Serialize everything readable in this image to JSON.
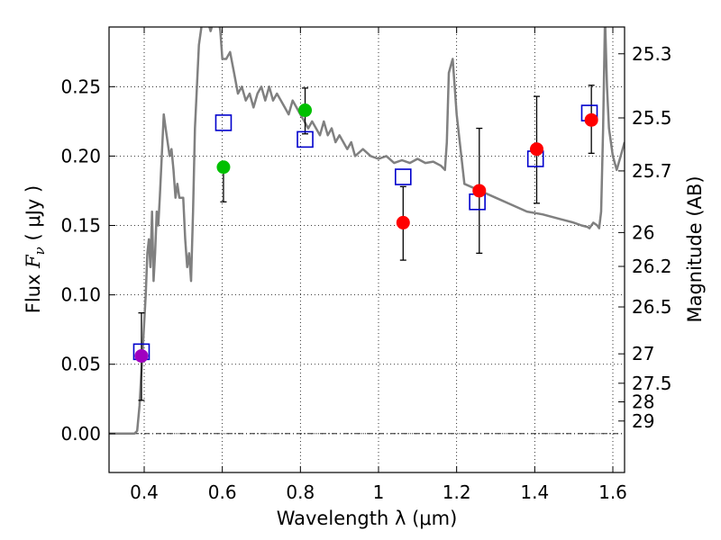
{
  "chart_data": {
    "type": "scatter",
    "xlabel": "Wavelength  λ (μm)",
    "ylabel": "Flux  Fν  ( μJy )",
    "ylabel_parts": {
      "pre": "Flux  ",
      "sym": "F",
      "sub": "ν",
      "post": "  ( μJy )"
    },
    "right_ylabel": "Magnitude (AB)",
    "xlim": [
      0.31,
      1.63
    ],
    "ylim": [
      -0.028,
      0.293
    ],
    "grid": true,
    "x_ticks": [
      {
        "value": 0.4,
        "label": "0.4"
      },
      {
        "value": 0.6,
        "label": "0.6"
      },
      {
        "value": 0.8,
        "label": "0.8"
      },
      {
        "value": 1.0,
        "label": "1"
      },
      {
        "value": 1.2,
        "label": "1.2"
      },
      {
        "value": 1.4,
        "label": "1.4"
      },
      {
        "value": 1.6,
        "label": "1.6"
      }
    ],
    "y_ticks": [
      {
        "value": 0.0,
        "label": "0.00"
      },
      {
        "value": 0.05,
        "label": "0.05"
      },
      {
        "value": 0.1,
        "label": "0.10"
      },
      {
        "value": 0.15,
        "label": "0.15"
      },
      {
        "value": 0.2,
        "label": "0.20"
      },
      {
        "value": 0.25,
        "label": "0.25"
      }
    ],
    "mag_ticks": [
      {
        "value": 0.2737,
        "label": "25.3"
      },
      {
        "value": 0.2275,
        "label": "25.5"
      },
      {
        "value": 0.1893,
        "label": "25.7"
      },
      {
        "value": 0.1449,
        "label": "26"
      },
      {
        "value": 0.1205,
        "label": "26.2"
      },
      {
        "value": 0.0913,
        "label": "26.5"
      },
      {
        "value": 0.0575,
        "label": "27"
      },
      {
        "value": 0.0363,
        "label": "27.5"
      },
      {
        "value": 0.0229,
        "label": "28"
      },
      {
        "value": 0.0091,
        "label": "29"
      }
    ],
    "series": [
      {
        "name": "model_sed",
        "style": "line",
        "color": "#808080",
        "x": [
          0.31,
          0.375,
          0.382,
          0.388,
          0.392,
          0.396,
          0.4,
          0.404,
          0.408,
          0.412,
          0.416,
          0.42,
          0.424,
          0.428,
          0.432,
          0.436,
          0.44,
          0.445,
          0.45,
          0.455,
          0.46,
          0.465,
          0.47,
          0.475,
          0.48,
          0.485,
          0.49,
          0.495,
          0.5,
          0.505,
          0.51,
          0.515,
          0.52,
          0.525,
          0.53,
          0.54,
          0.55,
          0.56,
          0.57,
          0.58,
          0.585,
          0.59,
          0.595,
          0.6,
          0.61,
          0.62,
          0.63,
          0.64,
          0.65,
          0.66,
          0.67,
          0.68,
          0.69,
          0.7,
          0.71,
          0.72,
          0.73,
          0.74,
          0.75,
          0.76,
          0.77,
          0.78,
          0.79,
          0.8,
          0.81,
          0.82,
          0.83,
          0.84,
          0.85,
          0.86,
          0.87,
          0.88,
          0.89,
          0.9,
          0.91,
          0.92,
          0.93,
          0.94,
          0.96,
          0.98,
          1.0,
          1.02,
          1.04,
          1.06,
          1.08,
          1.1,
          1.12,
          1.14,
          1.16,
          1.17,
          1.175,
          1.18,
          1.19,
          1.2,
          1.22,
          1.26,
          1.3,
          1.34,
          1.38,
          1.42,
          1.46,
          1.5,
          1.52,
          1.535,
          1.54,
          1.545,
          1.55,
          1.56,
          1.565,
          1.57,
          1.575,
          1.58,
          1.585,
          1.59,
          1.6,
          1.61,
          1.62,
          1.63
        ],
        "y": [
          0.0,
          0.0,
          0.002,
          0.02,
          0.04,
          0.06,
          0.08,
          0.1,
          0.13,
          0.14,
          0.12,
          0.16,
          0.11,
          0.13,
          0.16,
          0.15,
          0.17,
          0.2,
          0.23,
          0.22,
          0.21,
          0.2,
          0.205,
          0.19,
          0.17,
          0.18,
          0.17,
          0.17,
          0.17,
          0.14,
          0.12,
          0.13,
          0.11,
          0.16,
          0.22,
          0.28,
          0.3,
          0.3,
          0.29,
          0.3,
          0.295,
          0.3,
          0.29,
          0.27,
          0.27,
          0.275,
          0.26,
          0.245,
          0.25,
          0.24,
          0.245,
          0.235,
          0.245,
          0.25,
          0.24,
          0.25,
          0.24,
          0.245,
          0.24,
          0.235,
          0.23,
          0.24,
          0.235,
          0.23,
          0.225,
          0.22,
          0.225,
          0.22,
          0.215,
          0.225,
          0.215,
          0.22,
          0.21,
          0.215,
          0.21,
          0.205,
          0.21,
          0.2,
          0.205,
          0.2,
          0.198,
          0.2,
          0.195,
          0.197,
          0.195,
          0.198,
          0.195,
          0.196,
          0.193,
          0.19,
          0.21,
          0.26,
          0.27,
          0.23,
          0.18,
          0.175,
          0.17,
          0.165,
          0.16,
          0.158,
          0.155,
          0.152,
          0.15,
          0.149,
          0.148,
          0.15,
          0.152,
          0.15,
          0.148,
          0.16,
          0.22,
          0.3,
          0.25,
          0.22,
          0.2,
          0.19,
          0.2,
          0.21
        ]
      },
      {
        "name": "model_photometry",
        "style": "open-square",
        "color": "#0000cc",
        "x": [
          0.393,
          0.603,
          0.812,
          1.063,
          1.253,
          1.402,
          1.54
        ],
        "y": [
          0.059,
          0.224,
          0.212,
          0.185,
          0.167,
          0.198,
          0.231
        ]
      },
      {
        "name": "observed_flux",
        "style": "filled-circle-errorbar",
        "x": [
          0.393,
          0.603,
          0.812,
          1.063,
          1.258,
          1.405,
          1.545
        ],
        "y": [
          0.056,
          0.192,
          0.233,
          0.152,
          0.175,
          0.205,
          0.226
        ],
        "yerr_low": [
          0.032,
          0.025,
          0.017,
          0.027,
          0.045,
          0.039,
          0.024
        ],
        "yerr_high": [
          0.031,
          0.0,
          0.016,
          0.026,
          0.045,
          0.038,
          0.025
        ],
        "colors": [
          "#a000c0",
          "#00c000",
          "#00c000",
          "#ff0000",
          "#ff0000",
          "#ff0000",
          "#ff0000"
        ]
      }
    ]
  }
}
